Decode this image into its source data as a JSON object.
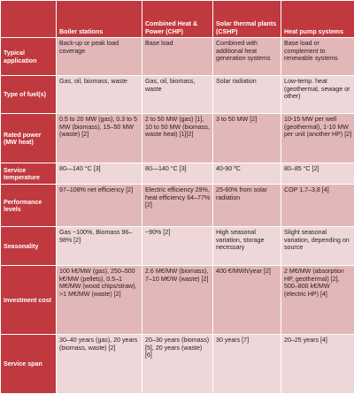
{
  "table": {
    "headers": [
      "",
      "Boiler stations",
      "Combined Heat & Power (CHP)",
      "Solar thermal plants (CSHP)",
      "Heat pump systems"
    ],
    "rows": [
      {
        "label": "Typical application",
        "cells": [
          "Back-up or peak load coverage",
          "Base load",
          "Combined with additional heat generation systems",
          "Base load or complement to renewable systems"
        ]
      },
      {
        "label": "Type of fuel(s)",
        "cells": [
          "Gas, oil, biomass, waste",
          "Gas, oil, biomass, waste",
          "Solar radiation",
          "Low-temp. heat (geothermal, sewage or other)"
        ]
      },
      {
        "label": "Rated power (MW heat)",
        "cells": [
          "0.5 to 20 MW (gas), 0.3 to 5 MW (biomass), 15–50 MW (waste) [2]",
          "2 to 50 MW (gas) [1], 10 to 50 MW (biomass, waste heat) [1][2]",
          "3 to 50 MW [2]",
          "10-15 MW per well (geothermal), 1-10 MW per unit (another HP) [2]"
        ]
      },
      {
        "label": "Service temperature",
        "cells": [
          "80—140 °C [3]",
          "80—140 °C [3]",
          "40-90 ºC",
          "80–85 °C [2]"
        ]
      },
      {
        "label": "Performance levels",
        "cells": [
          "97–108% net efficiency [2]",
          "Electric efficiency 29%, heat efficiency 64–77% [2]",
          "25-60% from solar radiation",
          "COP 1,7–3,8 [4]"
        ]
      },
      {
        "label": "Seasonality",
        "cells": [
          "Gas ~100%, Biomass 96–98% [2]",
          "~90% [2]",
          "High seasonal variation, storage necessary",
          "Slight seasonal variation, depending on source"
        ]
      },
      {
        "label": "Investment cost",
        "cells": [
          "100 k€/MW (gas), 250–500 k€/MW (pellets), 0.5–1 M€/MW (wood chips/straw), >1 M€/MW (waste) [2]",
          "2.6 M€/MW (biomass), 7–10 M€/W (waste) [2]",
          "400 €/MWh/year [2]",
          "2 M€/MW (absorption HP, geothermal) [2], 500–800 k€/MW (electric HP) [4]"
        ]
      },
      {
        "label": "Service span",
        "cells": [
          "30–40 years (gas), 20 years (biomass, waste) [2]",
          "20–30 years (biomass) [5], 20 years (waste) [6]",
          "30 years [7]",
          "20–25 years [4]"
        ]
      }
    ]
  },
  "colors": {
    "header_bg": "#c0393f",
    "row_odd_bg": "#e2b7b8",
    "row_even_bg": "#eed7d8"
  }
}
